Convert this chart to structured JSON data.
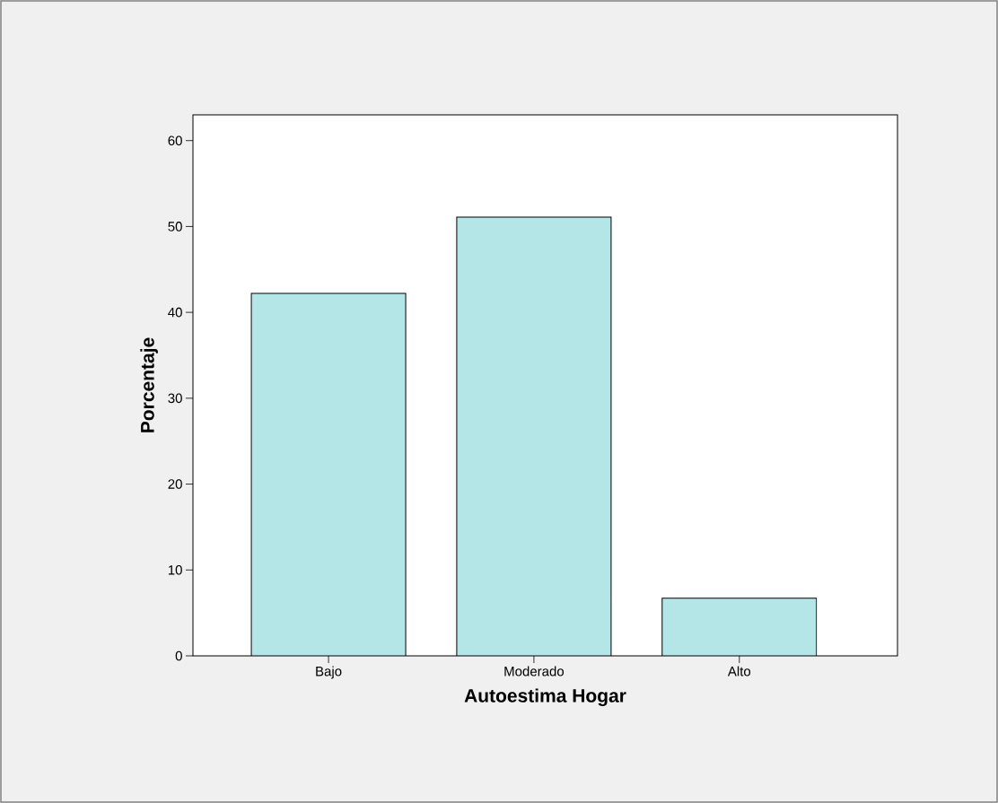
{
  "chart_data": {
    "type": "bar",
    "xlabel": "Autoestima Hogar",
    "ylabel": "Porcentaje",
    "categories": [
      "Bajo",
      "Moderado",
      "Alto"
    ],
    "values": [
      42.2,
      51.1,
      6.7
    ],
    "color": "#b4e6e8",
    "ylim": [
      0,
      63
    ],
    "yticks": [
      0,
      10,
      20,
      30,
      40,
      50,
      60
    ],
    "grid": false
  }
}
